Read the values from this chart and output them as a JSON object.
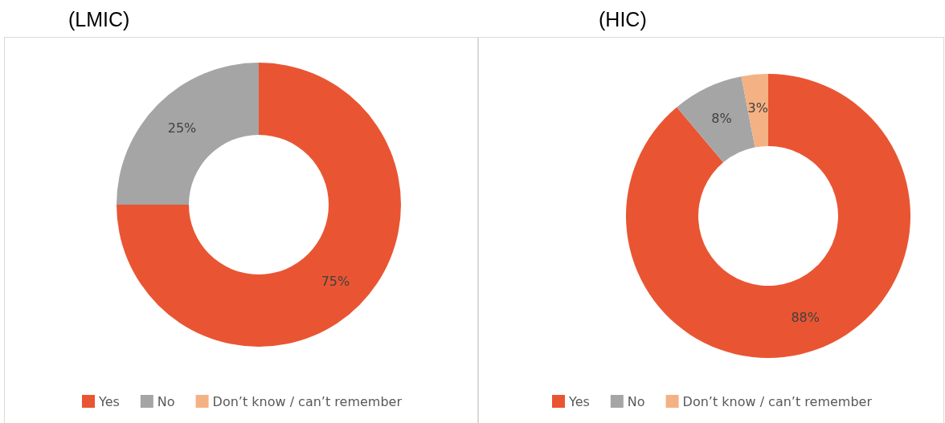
{
  "chart_data": [
    {
      "type": "donut",
      "title": "(LMIC)",
      "categories": [
        "Yes",
        "No",
        "Don’t know / can’t remember"
      ],
      "values": [
        75,
        25,
        0
      ],
      "colors": [
        "#e95532",
        "#a5a5a5",
        "#f4b183"
      ],
      "value_labels": [
        "75%",
        "25%",
        null
      ],
      "legend": "bottom"
    },
    {
      "type": "donut",
      "title": "(HIC)",
      "categories": [
        "Yes",
        "No",
        "Don’t know / can’t remember"
      ],
      "values": [
        88,
        8,
        3
      ],
      "colors": [
        "#e95532",
        "#a5a5a5",
        "#f4b183"
      ],
      "value_labels": [
        "88%",
        "8%",
        "3%"
      ],
      "legend": "bottom"
    }
  ]
}
